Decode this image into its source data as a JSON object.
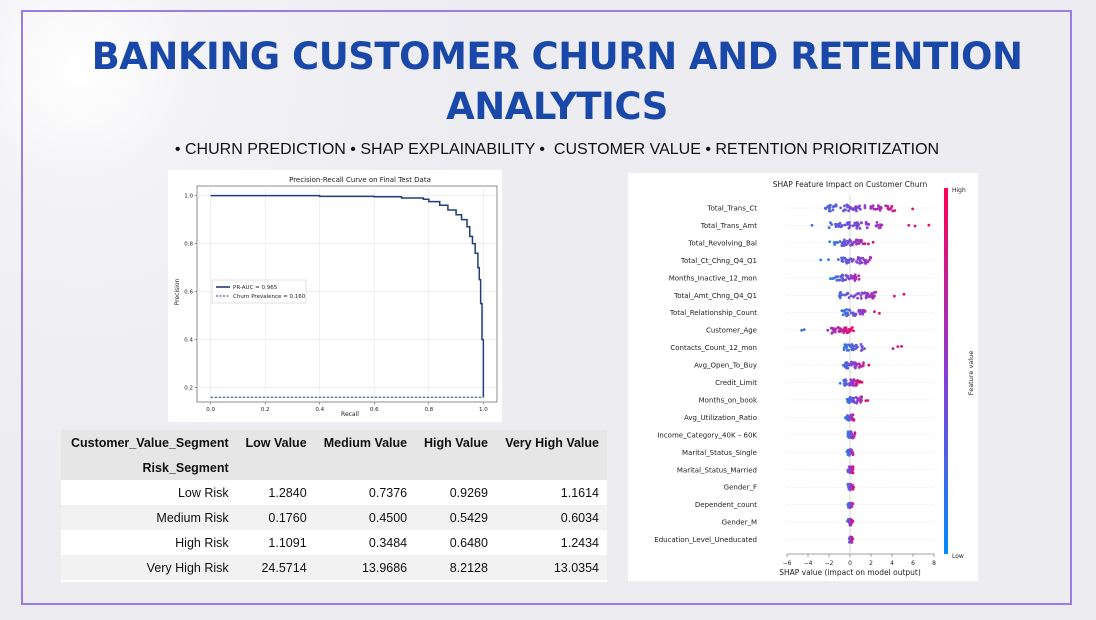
{
  "slide": {
    "title": "BANKING CUSTOMER CHURN AND RETENTION ANALYTICS",
    "subtitle": "• CHURN PREDICTION • SHAP EXPLAINABILITY •  CUSTOMER VALUE • RETENTION PRIORITIZATION"
  },
  "colors": {
    "title": "#1a48a8",
    "frame": "#9b7be6",
    "pr_curve": "#1f3e7a",
    "shap_low": "#1e88e5",
    "shap_high": "#ff0051"
  },
  "chart_data": [
    {
      "type": "line",
      "title": "Precision-Recall Curve on Final Test Data",
      "xlabel": "Recall",
      "ylabel": "Precision",
      "xlim": [
        -0.05,
        1.05
      ],
      "ylim": [
        0.14,
        1.04
      ],
      "xticks": [
        "0.0",
        "0.2",
        "0.4",
        "0.6",
        "0.8",
        "1.0"
      ],
      "yticks": [
        "0.2",
        "0.4",
        "0.6",
        "0.8",
        "1.0"
      ],
      "grid": true,
      "legend_position": "center-left",
      "series": [
        {
          "name": "PR-AUC = 0.965",
          "style": "solid",
          "x": [
            0.0,
            0.2,
            0.4,
            0.6,
            0.7,
            0.78,
            0.8,
            0.84,
            0.87,
            0.9,
            0.92,
            0.94,
            0.95,
            0.96,
            0.97,
            0.98,
            0.985,
            0.99,
            0.995,
            1.0
          ],
          "y": [
            1.0,
            1.0,
            0.997,
            0.995,
            0.99,
            0.985,
            0.975,
            0.96,
            0.94,
            0.92,
            0.9,
            0.87,
            0.83,
            0.8,
            0.76,
            0.7,
            0.65,
            0.55,
            0.4,
            0.16
          ]
        },
        {
          "name": "Churn Prevalence = 0.160",
          "style": "dashed",
          "x": [
            0.0,
            1.0
          ],
          "y": [
            0.16,
            0.16
          ]
        }
      ]
    },
    {
      "type": "scatter",
      "title": "SHAP Feature Impact on Customer Churn",
      "xlabel": "SHAP value (impact on model output)",
      "xticks": [
        "−6",
        "−4",
        "−2",
        "0",
        "2",
        "4",
        "6",
        "8"
      ],
      "xlim": [
        -6,
        8
      ],
      "colorbar": {
        "label": "Feature value",
        "high": "High",
        "low": "Low"
      },
      "features": [
        {
          "name": "Total_Trans_Ct",
          "min": -4.6,
          "max": 6.8,
          "core": [
            -2.5,
            4.5
          ]
        },
        {
          "name": "Total_Trans_Amt",
          "min": -5,
          "max": 8.2,
          "core": [
            -2,
            3
          ]
        },
        {
          "name": "Total_Revolving_Bal",
          "min": -2,
          "max": 2.7,
          "core": [
            -1.5,
            1.5
          ]
        },
        {
          "name": "Total_Ct_Chng_Q4_Q1",
          "min": -2.8,
          "max": 5,
          "core": [
            -1,
            2
          ]
        },
        {
          "name": "Months_Inactive_12_mon",
          "min": -2,
          "max": 2,
          "core": [
            -1.4,
            1
          ]
        },
        {
          "name": "Total_Amt_Chng_Q4_Q1",
          "min": -3,
          "max": 5.5,
          "core": [
            -1,
            2.5
          ]
        },
        {
          "name": "Total_Relationship_Count",
          "min": -1.2,
          "max": 3.2,
          "core": [
            -0.8,
            1.5
          ]
        },
        {
          "name": "Customer_Age",
          "min": -5.6,
          "max": 0.8,
          "core": [
            -1.8,
            0.4
          ]
        },
        {
          "name": "Contacts_Count_12_mon",
          "min": -1.5,
          "max": 6,
          "core": [
            -0.6,
            1.2
          ]
        },
        {
          "name": "Avg_Open_To_Buy",
          "min": -1.2,
          "max": 2,
          "core": [
            -0.6,
            1.3
          ]
        },
        {
          "name": "Credit_Limit",
          "min": -1,
          "max": 1.2,
          "core": [
            -0.6,
            1
          ]
        },
        {
          "name": "Months_on_book",
          "min": -0.6,
          "max": 2,
          "core": [
            -0.3,
            1.2
          ]
        },
        {
          "name": "Avg_Utilization_Ratio",
          "min": -0.5,
          "max": 0.6,
          "core": [
            -0.3,
            0.4
          ]
        },
        {
          "name": "Income_Category_40K – 60K",
          "min": -0.3,
          "max": 0.7,
          "core": [
            -0.2,
            0.5
          ]
        },
        {
          "name": "Marital_Status_Single",
          "min": -0.3,
          "max": 0.5,
          "core": [
            -0.2,
            0.3
          ]
        },
        {
          "name": "Marital_Status_Married",
          "min": -0.4,
          "max": 0.4,
          "core": [
            -0.2,
            0.3
          ]
        },
        {
          "name": "Gender_F",
          "min": -0.3,
          "max": 0.4,
          "core": [
            -0.2,
            0.3
          ]
        },
        {
          "name": "Dependent_count",
          "min": -0.3,
          "max": 0.4,
          "core": [
            -0.2,
            0.2
          ]
        },
        {
          "name": "Gender_M",
          "min": -0.3,
          "max": 0.3,
          "core": [
            -0.2,
            0.2
          ]
        },
        {
          "name": "Education_Level_Uneducated",
          "min": -0.2,
          "max": 0.3,
          "core": [
            -0.1,
            0.2
          ]
        }
      ]
    }
  ],
  "table": {
    "columns_label": "Customer_Value_Segment",
    "index_label": "Risk_Segment",
    "columns": [
      "Low Value",
      "Medium Value",
      "High Value",
      "Very High Value"
    ],
    "rows": [
      {
        "label": "Low Risk",
        "values": [
          "1.2840",
          "0.7376",
          "0.9269",
          "1.1614"
        ]
      },
      {
        "label": "Medium Risk",
        "values": [
          "0.1760",
          "0.4500",
          "0.5429",
          "0.6034"
        ]
      },
      {
        "label": "High Risk",
        "values": [
          "1.1091",
          "0.3484",
          "0.6480",
          "1.2434"
        ]
      },
      {
        "label": "Very High Risk",
        "values": [
          "24.5714",
          "13.9686",
          "8.2128",
          "13.0354"
        ]
      }
    ]
  }
}
